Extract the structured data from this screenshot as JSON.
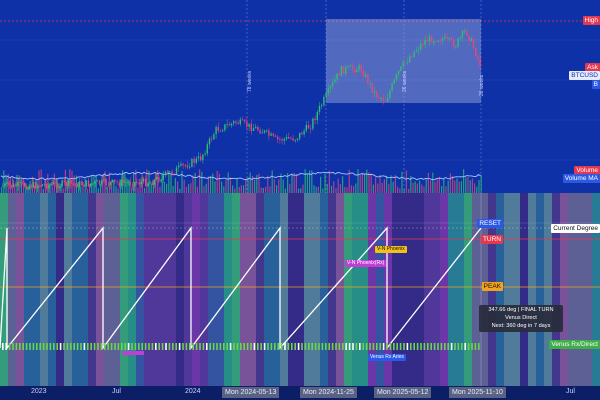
{
  "tags": {
    "high": "High",
    "ask": "Ask",
    "symbol": "BTCUSD",
    "b": "B",
    "volume": "Volume",
    "volume_ma": "Volume MA",
    "current_degree": "Current Degree",
    "reset": "RESET",
    "turn": "TURN",
    "peak": "PEAK",
    "venus_rx_direct": "Venus Rx/Direct"
  },
  "annotations": {
    "weeks_78": "78 weeks",
    "weeks_26": "26 weeks",
    "weeks_26b": "26 weeks",
    "vn_phoenix_rx": "V-N Phoenix(Rx)",
    "vn_phoenix": "V-N Phoenix",
    "venus_rx_aries": "Venus Rx Aries"
  },
  "info_box": {
    "line1": "347.66 deg | FINAL TURN",
    "line2": "Venus Direct",
    "line3": "Next: 360 deg in 7 days"
  },
  "time_axis": {
    "labels": [
      "2023",
      "Jul",
      "2024",
      "Jul"
    ],
    "highlighted": [
      "Mon 2024-05-13",
      "Mon 2024-11-25",
      "Mon 2025-05-12",
      "Mon 2025-11-10"
    ]
  },
  "colors": {
    "price_bg": "#0f31a8",
    "bull_candle": "#2fbf71",
    "bear_candle": "#e8457a",
    "high_tag": "#e5384f",
    "turn_line": "#e5384f",
    "peak_line": "#f2a21b",
    "reset_tag": "#2b59e6",
    "saw_line": "#ffffff",
    "venus_tag": "#3fae49"
  }
}
